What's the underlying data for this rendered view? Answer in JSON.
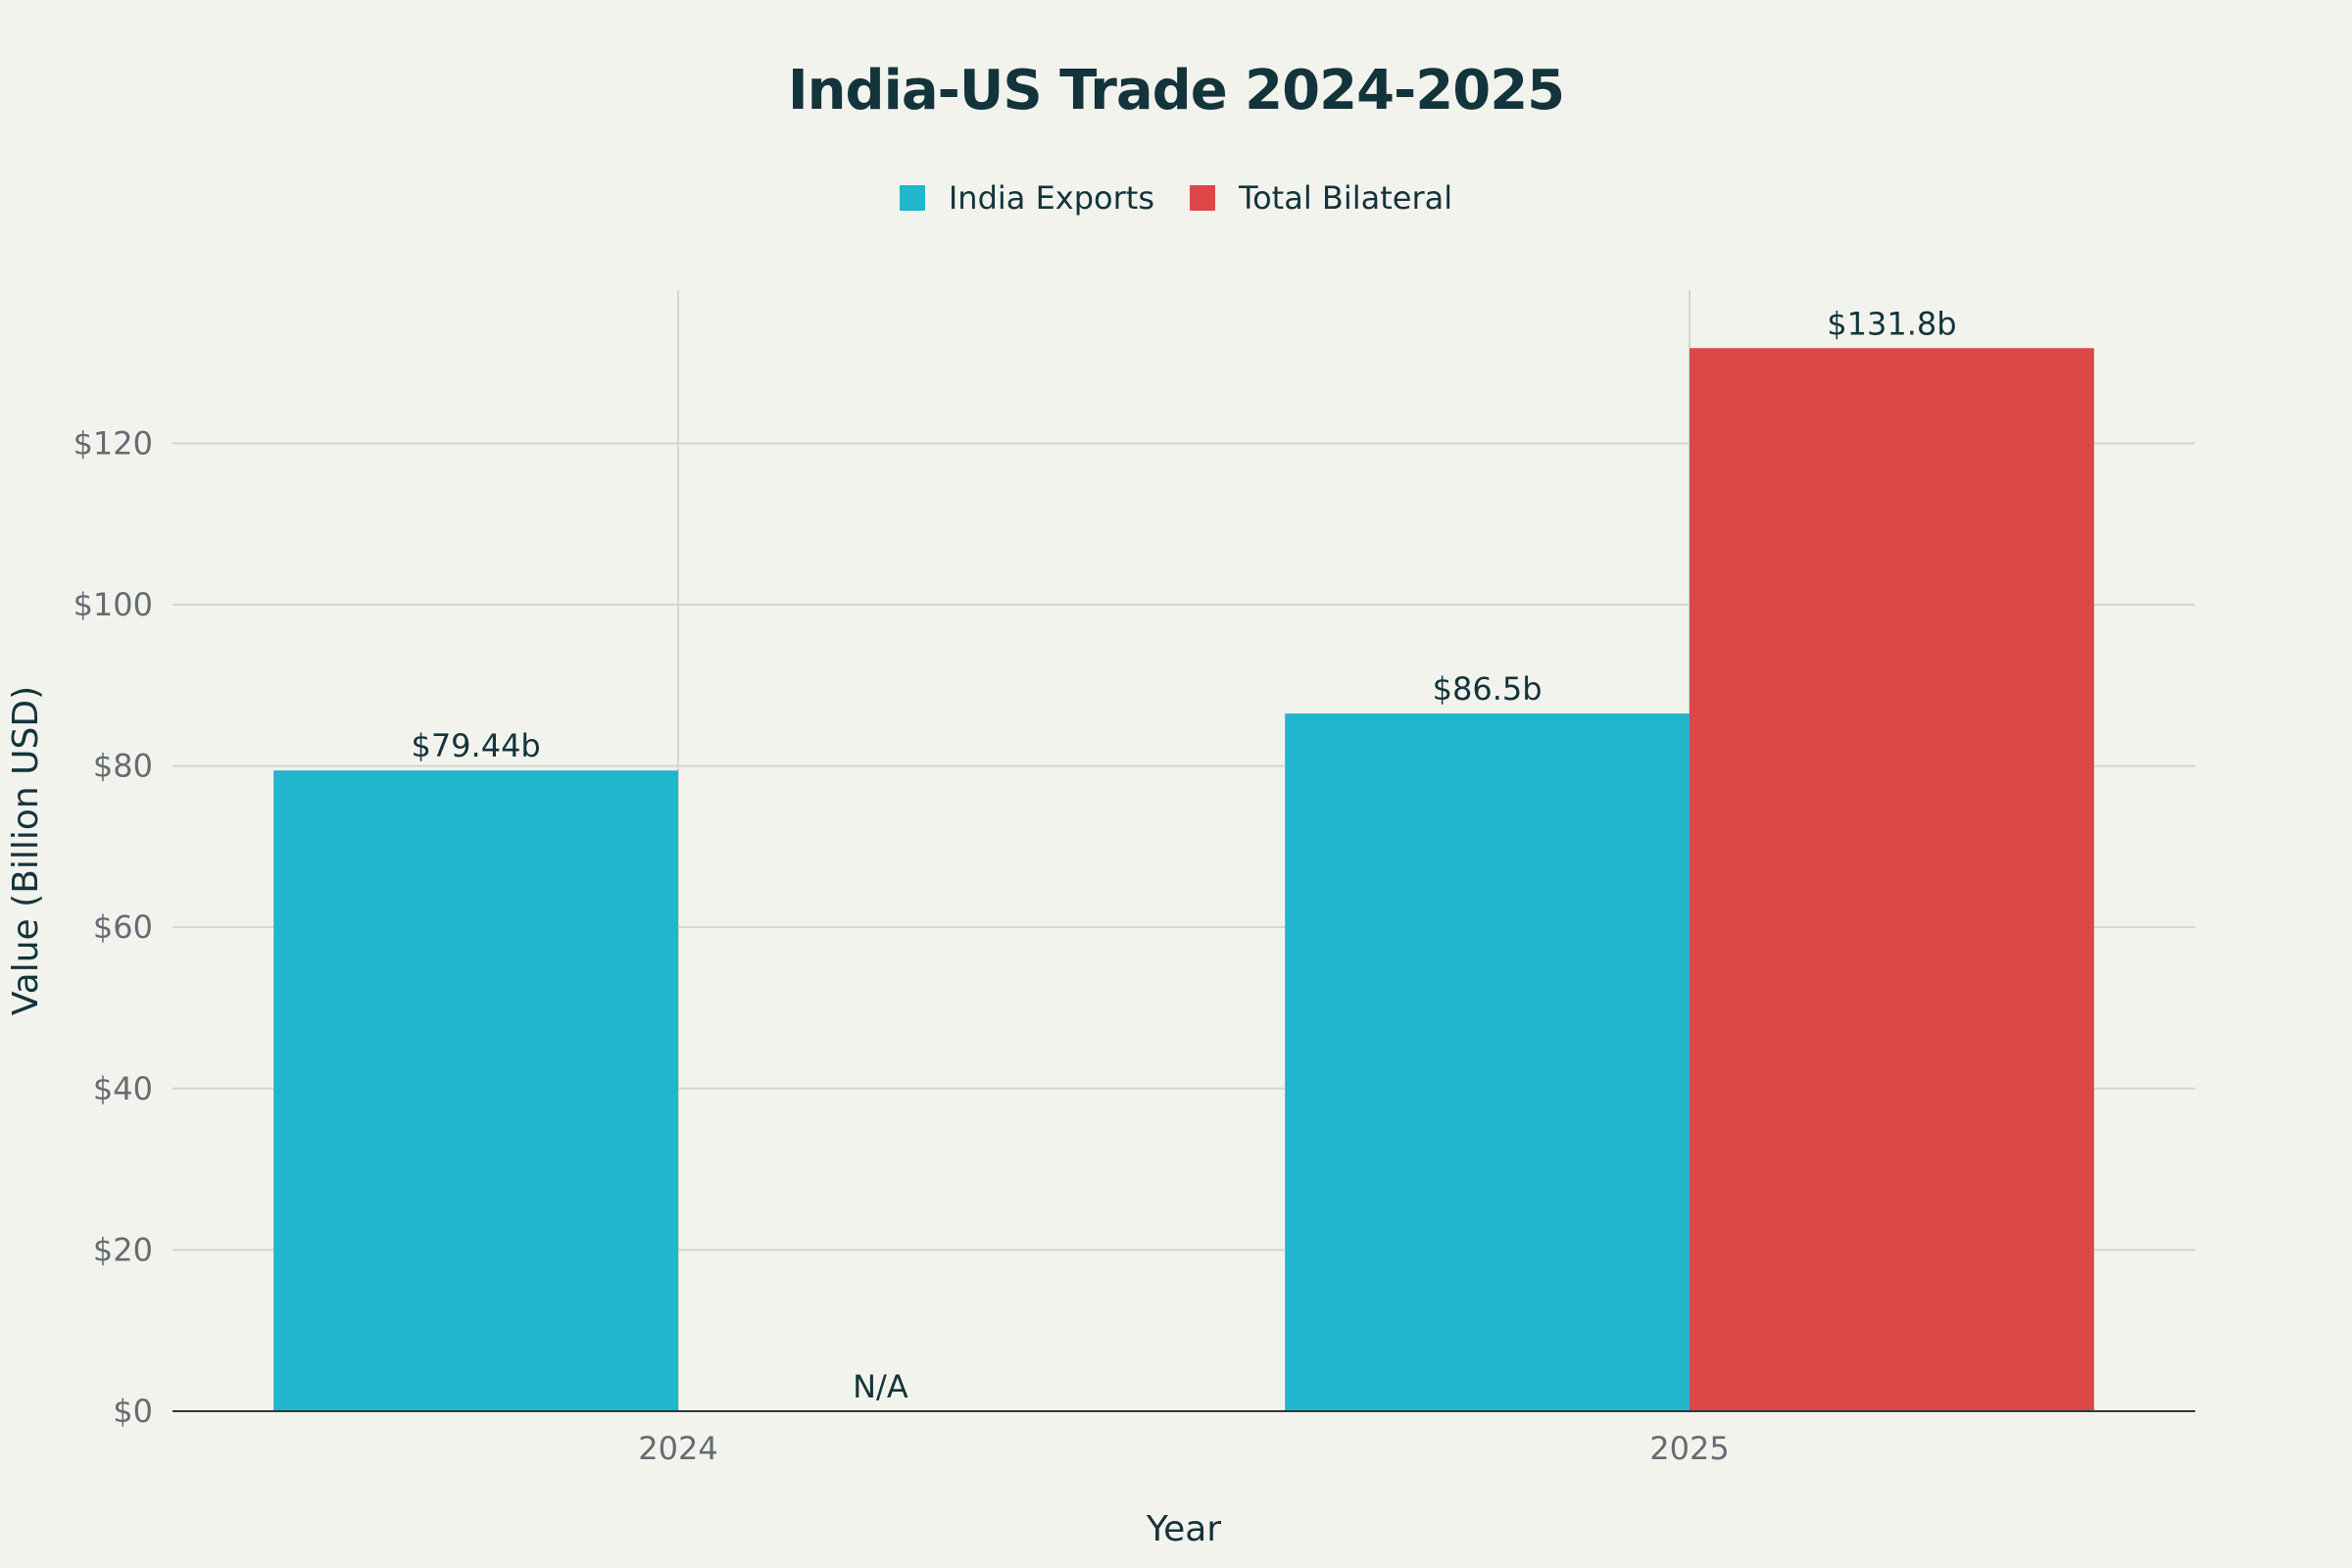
{
  "chart_data": {
    "type": "bar",
    "title": "India-US Trade 2024-2025",
    "xlabel": "Year",
    "ylabel": "Value (Billion USD)",
    "categories": [
      "2024",
      "2025"
    ],
    "series": [
      {
        "name": "India Exports",
        "color": "#21b6cc",
        "values": [
          79.44,
          86.5
        ],
        "labels": [
          "$79.44b",
          "$86.5b"
        ]
      },
      {
        "name": "Total Bilateral",
        "color": "#dc4747",
        "values": [
          null,
          131.8
        ],
        "labels": [
          "N/A",
          "$131.8b"
        ]
      }
    ],
    "ylim": [
      0,
      139
    ],
    "yticks": [
      0,
      20,
      40,
      60,
      80,
      100,
      120
    ],
    "ytick_labels": [
      "$0",
      "$20",
      "$40",
      "$60",
      "$80",
      "$100",
      "$120"
    ],
    "grid": true,
    "legend_position": "top-center"
  }
}
